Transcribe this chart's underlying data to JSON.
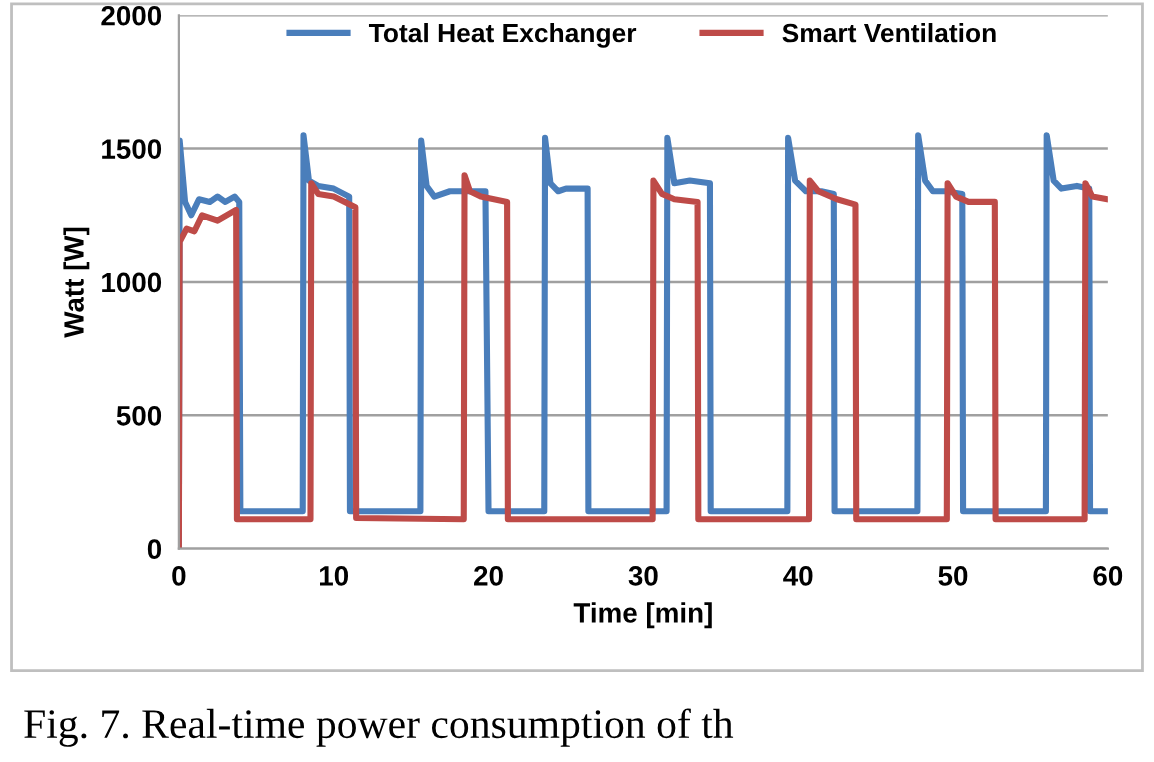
{
  "chart_data": {
    "type": "line",
    "xlabel": "Time [min]",
    "ylabel": "Watt [W]",
    "xlim": [
      0,
      60
    ],
    "xticks": [
      0,
      10,
      20,
      30,
      40,
      50,
      60
    ],
    "ylim": [
      0,
      2000
    ],
    "yticks": [
      0,
      500,
      1000,
      1500,
      2000
    ],
    "grid": "y",
    "legend": "top",
    "marker": "none",
    "line_style": "solid",
    "annotations": [
      "Fig. 7. Real-time power consumption of th"
    ],
    "series": [
      {
        "name": "Total Heat Exchanger",
        "color": "#4a7ebb",
        "x": [
          0,
          0.05,
          0.4,
          0.8,
          1.3,
          2,
          2.5,
          3,
          3.6,
          3.9,
          3.97,
          8.0,
          8.05,
          8.4,
          9,
          10,
          11,
          11.05,
          15.6,
          15.65,
          16,
          16.5,
          17.5,
          19.8,
          20.0,
          23.6,
          23.65,
          24,
          24.5,
          25,
          26.4,
          26.45,
          31.5,
          31.55,
          32,
          33,
          34.3,
          34.35,
          39.3,
          39.35,
          39.8,
          40.5,
          41.5,
          42.3,
          42.35,
          47.7,
          47.75,
          48.2,
          48.7,
          49.5,
          50.6,
          50.65,
          56.0,
          56.05,
          56.5,
          57,
          58,
          58.8,
          58.85,
          60
        ],
        "values": [
          0,
          1530,
          1300,
          1250,
          1310,
          1300,
          1320,
          1300,
          1320,
          1300,
          140,
          140,
          1550,
          1380,
          1360,
          1350,
          1320,
          140,
          140,
          1530,
          1360,
          1320,
          1340,
          1340,
          140,
          140,
          1540,
          1370,
          1340,
          1350,
          1350,
          140,
          140,
          1540,
          1370,
          1380,
          1370,
          140,
          140,
          1540,
          1380,
          1340,
          1340,
          1330,
          140,
          140,
          1550,
          1380,
          1340,
          1340,
          1330,
          140,
          140,
          1550,
          1380,
          1350,
          1360,
          1350,
          140,
          140
        ]
      },
      {
        "name": "Smart Ventilation",
        "color": "#be4b48",
        "x": [
          0,
          0.05,
          0.5,
          1,
          1.5,
          2.5,
          3.7,
          3.75,
          8.5,
          8.55,
          9,
          10,
          11.4,
          11.45,
          18.4,
          18.45,
          18.8,
          19.5,
          21.2,
          21.25,
          30.6,
          30.65,
          31.2,
          32,
          33.5,
          33.55,
          40.7,
          40.75,
          41.3,
          42.5,
          43.7,
          43.75,
          49.6,
          49.65,
          50.2,
          51,
          52.7,
          52.75,
          58.5,
          58.55,
          59,
          60
        ],
        "values": [
          0,
          1150,
          1200,
          1190,
          1250,
          1230,
          1270,
          110,
          110,
          1370,
          1330,
          1320,
          1280,
          115,
          110,
          1400,
          1340,
          1320,
          1300,
          110,
          110,
          1380,
          1330,
          1310,
          1300,
          110,
          110,
          1380,
          1340,
          1310,
          1290,
          110,
          110,
          1370,
          1320,
          1300,
          1300,
          110,
          110,
          1370,
          1320,
          1310
        ]
      }
    ]
  }
}
